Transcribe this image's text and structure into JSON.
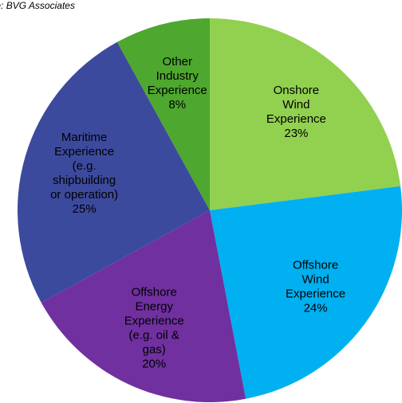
{
  "chart_data": {
    "type": "pie",
    "source": "Source: BVG Associates",
    "categories": [
      [
        "Onshore",
        "Wind",
        "Experience"
      ],
      [
        "Offshore",
        "Wind",
        "Experience"
      ],
      [
        "Offshore",
        "Energy",
        "Experience",
        "(e.g. oil &",
        "gas)"
      ],
      [
        "Maritime",
        "Experience",
        "(e.g.",
        "shipbuilding",
        "or operation)"
      ],
      [
        "Other",
        "Industry",
        "Experience"
      ]
    ],
    "values": [
      23,
      24,
      20,
      25,
      8
    ],
    "value_labels": [
      "23%",
      "24%",
      "20%",
      "25%",
      "8%"
    ],
    "colors": [
      "#92d050",
      "#00b0f0",
      "#7030a0",
      "#3c4a9e",
      "#4ea72e"
    ]
  }
}
